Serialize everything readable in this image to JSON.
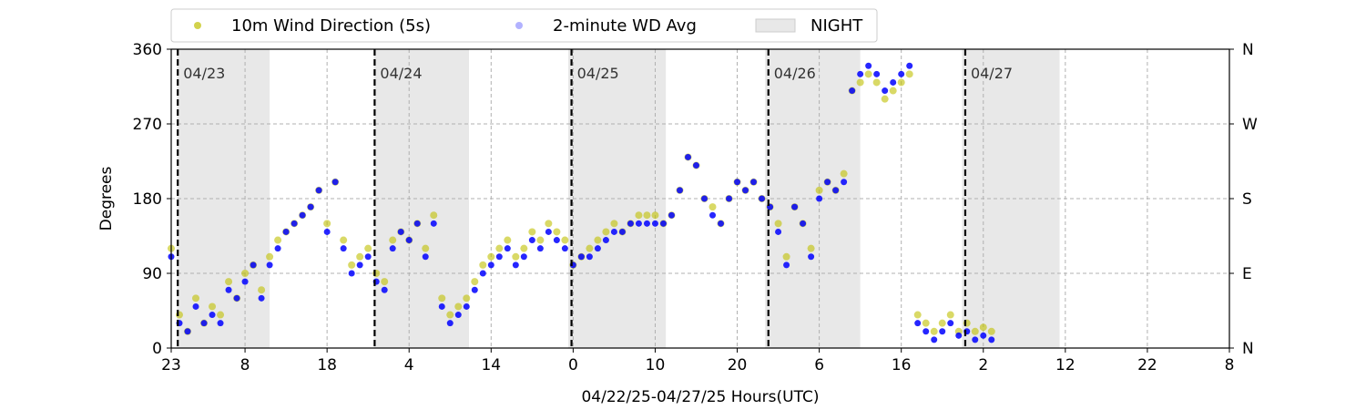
{
  "chart_data": {
    "type": "scatter",
    "ylabel": "Degrees",
    "xlabel": "04/22/25-04/27/25  Hours(UTC)",
    "ylim": [
      0,
      360
    ],
    "yticks": [
      0,
      90,
      180,
      270,
      360
    ],
    "right_ticks": [
      {
        "value": 0,
        "label": "N"
      },
      {
        "value": 90,
        "label": "E"
      },
      {
        "value": 180,
        "label": "S"
      },
      {
        "value": 270,
        "label": "W"
      },
      {
        "value": 360,
        "label": "N"
      }
    ],
    "x_range_hours": [
      0,
      129
    ],
    "x_tick_hours": [
      0,
      9,
      19,
      29,
      39,
      49,
      59,
      69,
      79,
      89,
      99,
      109,
      119,
      129
    ],
    "x_tick_labels": [
      "23",
      "8",
      "18",
      "4",
      "14",
      "0",
      "10",
      "20",
      "6",
      "16",
      "2",
      "12",
      "22",
      "8"
    ],
    "grid": true,
    "legend_placement": "top-left, above plot",
    "legend": [
      {
        "label": "10m Wind Direction (5s)",
        "kind": "dot",
        "color": "#bfbf00"
      },
      {
        "label": "2-minute WD Avg",
        "kind": "dot",
        "color": "#0000ff"
      },
      {
        "label": "NIGHT",
        "kind": "patch",
        "color": "#e8e8e8"
      }
    ],
    "night_periods": [
      [
        0.7,
        12
      ],
      [
        24.7,
        36.3
      ],
      [
        48.4,
        60.3
      ],
      [
        72.4,
        84
      ],
      [
        96.4,
        108.3
      ]
    ],
    "day_markers": [
      {
        "hour": 0.8,
        "label": "04/23"
      },
      {
        "hour": 24.8,
        "label": "04/24"
      },
      {
        "hour": 48.8,
        "label": "04/25"
      },
      {
        "hour": 72.8,
        "label": "04/26"
      },
      {
        "hour": 96.8,
        "label": "04/27"
      }
    ],
    "series": [
      {
        "name": "10m Wind Direction (5s)",
        "color": "#bfbf00",
        "x": [
          0,
          1,
          2,
          3,
          4,
          5,
          6,
          7,
          8,
          9,
          10,
          11,
          12,
          13,
          14,
          15,
          16,
          17,
          18,
          19,
          20,
          21,
          22,
          23,
          24,
          25,
          26,
          27,
          28,
          29,
          30,
          31,
          32,
          33,
          34,
          35,
          36,
          37,
          38,
          39,
          40,
          41,
          42,
          43,
          44,
          45,
          46,
          47,
          48,
          49,
          50,
          51,
          52,
          53,
          54,
          55,
          56,
          57,
          58,
          59,
          60,
          61,
          62,
          63,
          64,
          65,
          66,
          67,
          68,
          69,
          70,
          71,
          72,
          73,
          74,
          75,
          76,
          77,
          78,
          79,
          80,
          81,
          82,
          83,
          84,
          85,
          86,
          87,
          88,
          89,
          90,
          91,
          92,
          93,
          94,
          95,
          96,
          97,
          98,
          99,
          100
        ],
        "y": [
          120,
          40,
          20,
          60,
          30,
          50,
          40,
          80,
          60,
          90,
          100,
          70,
          110,
          130,
          140,
          150,
          160,
          170,
          190,
          150,
          200,
          130,
          100,
          110,
          120,
          90,
          80,
          130,
          140,
          130,
          150,
          120,
          160,
          60,
          40,
          50,
          60,
          80,
          100,
          110,
          120,
          130,
          110,
          120,
          140,
          130,
          150,
          140,
          130,
          100,
          110,
          120,
          130,
          140,
          150,
          140,
          150,
          160,
          160,
          160,
          150,
          160,
          190,
          230,
          220,
          180,
          170,
          150,
          180,
          200,
          190,
          200,
          180,
          170,
          150,
          110,
          170,
          150,
          120,
          190,
          200,
          190,
          210,
          310,
          320,
          330,
          320,
          300,
          310,
          320,
          330,
          40,
          30,
          20,
          30,
          40,
          20,
          30,
          20,
          25,
          20
        ]
      },
      {
        "name": "2-minute WD Avg",
        "color": "#0000ff",
        "x": [
          0,
          1,
          2,
          3,
          4,
          5,
          6,
          7,
          8,
          9,
          10,
          11,
          12,
          13,
          14,
          15,
          16,
          17,
          18,
          19,
          20,
          21,
          22,
          23,
          24,
          25,
          26,
          27,
          28,
          29,
          30,
          31,
          32,
          33,
          34,
          35,
          36,
          37,
          38,
          39,
          40,
          41,
          42,
          43,
          44,
          45,
          46,
          47,
          48,
          49,
          50,
          51,
          52,
          53,
          54,
          55,
          56,
          57,
          58,
          59,
          60,
          61,
          62,
          63,
          64,
          65,
          66,
          67,
          68,
          69,
          70,
          71,
          72,
          73,
          74,
          75,
          76,
          77,
          78,
          79,
          80,
          81,
          82,
          83,
          84,
          85,
          86,
          87,
          88,
          89,
          90,
          91,
          92,
          93,
          94,
          95,
          96,
          97,
          98,
          99,
          100
        ],
        "y": [
          110,
          30,
          20,
          50,
          30,
          40,
          30,
          70,
          60,
          80,
          100,
          60,
          100,
          120,
          140,
          150,
          160,
          170,
          190,
          140,
          200,
          120,
          90,
          100,
          110,
          80,
          70,
          120,
          140,
          130,
          150,
          110,
          150,
          50,
          30,
          40,
          50,
          70,
          90,
          100,
          110,
          120,
          100,
          110,
          130,
          120,
          140,
          130,
          120,
          100,
          110,
          110,
          120,
          130,
          140,
          140,
          150,
          150,
          150,
          150,
          150,
          160,
          190,
          230,
          220,
          180,
          160,
          150,
          180,
          200,
          190,
          200,
          180,
          170,
          140,
          100,
          170,
          150,
          110,
          180,
          200,
          190,
          200,
          310,
          330,
          340,
          330,
          310,
          320,
          330,
          340,
          30,
          20,
          10,
          20,
          30,
          15,
          20,
          10,
          15,
          10
        ]
      }
    ]
  }
}
